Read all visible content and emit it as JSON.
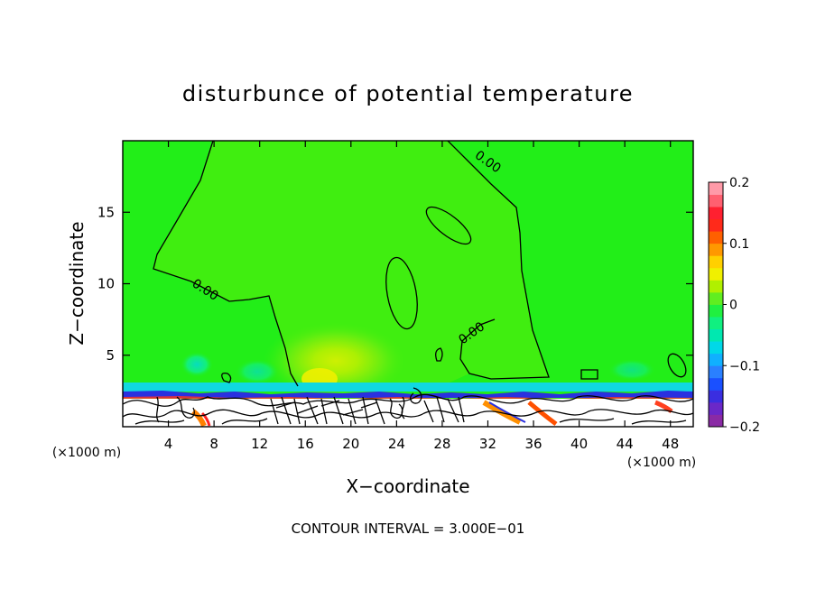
{
  "chart_data": {
    "type": "heatmap",
    "title": "disturbunce of potential temperature",
    "xlabel": "X−coordinate",
    "ylabel": "Z−coordinate",
    "x_unit": "(×1000 m)",
    "y_unit": "(×1000 m)",
    "xlim": [
      0,
      50
    ],
    "ylim": [
      0,
      20
    ],
    "x_ticks": [
      4,
      8,
      12,
      16,
      20,
      24,
      28,
      32,
      36,
      40,
      44,
      48
    ],
    "y_ticks": [
      5,
      10,
      15
    ],
    "contour_interval_label": "CONTOUR INTERVAL = 3.000E−01",
    "contour_labels": [
      "0.00",
      "0.00",
      "0.00"
    ],
    "colorbar": {
      "min": -0.2,
      "max": 0.2,
      "tick_labels": [
        "0.2",
        "0.1",
        "0",
        "−0.1",
        "−0.2"
      ],
      "tick_values": [
        0.2,
        0.1,
        0,
        -0.1,
        -0.2
      ],
      "colors": [
        "#8a2aa5",
        "#6a28c8",
        "#3a2ee0",
        "#1a50ff",
        "#2a80ff",
        "#10b0ff",
        "#00d8e8",
        "#00e8b0",
        "#10f080",
        "#20f040",
        "#60ee20",
        "#b0f000",
        "#f0f000",
        "#ffd000",
        "#ff9800",
        "#ff6000",
        "#ff2a1a",
        "#ff2030",
        "#ff6070",
        "#ff9aa8"
      ]
    },
    "grid": false,
    "background_value": 0
  }
}
